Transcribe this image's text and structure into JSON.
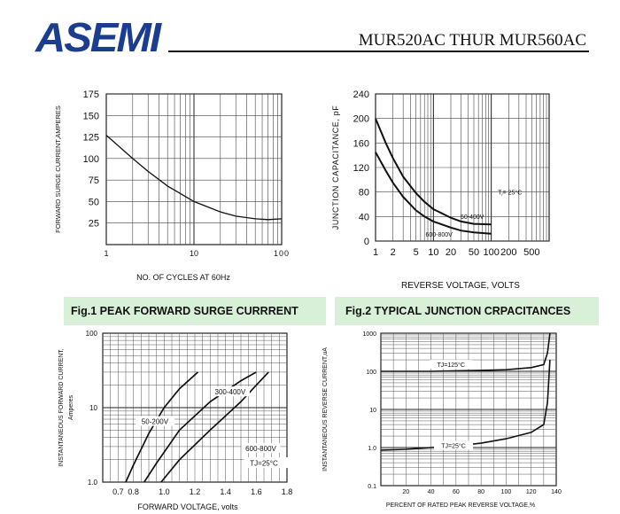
{
  "header": {
    "logo": "ASEMI",
    "part_range": "MUR520AC THUR MUR560AC",
    "brand_color": "#1b3d8f"
  },
  "captions": {
    "fig1": "Fig.1 PEAK FORWARD SURGE CURRRENT",
    "fig2": "Fig.2 TYPICAL JUNCTION CRPACITANCES",
    "band_color": "#d7f0d7"
  },
  "chart_data": [
    {
      "type": "line",
      "ylabel": "FORWARD SURGE CURRENT,AMPERES",
      "xlabel": "NO. OF CYCLES AT 60Hz",
      "x_scale": "log",
      "xlim": [
        1,
        100
      ],
      "ylim": [
        0,
        175
      ],
      "yticks": [
        25,
        50,
        75,
        100,
        125,
        150,
        175
      ],
      "xticks": [
        "1",
        "10",
        "100"
      ],
      "grid": true,
      "series": [
        {
          "x": [
            1,
            2,
            3,
            5,
            10,
            20,
            30,
            50,
            70,
            100
          ],
          "y": [
            127,
            100,
            85,
            68,
            50,
            38,
            33,
            30,
            29,
            30
          ]
        }
      ]
    },
    {
      "type": "line",
      "ylabel": "JUNCTION CAPACITANCE, pF",
      "xlabel": "REVERSE VOLTAGE, VOLTS",
      "x_scale": "log",
      "xlim": [
        1,
        1000
      ],
      "ylim": [
        0,
        240
      ],
      "yticks": [
        0,
        40,
        80,
        120,
        160,
        200,
        240
      ],
      "xticks": [
        "1",
        "2",
        "5",
        "10",
        "20",
        "50",
        "100",
        "200",
        "500"
      ],
      "grid": true,
      "annotation": "Tⱼ= 25°C",
      "series": [
        {
          "name": "50-400V",
          "x": [
            1,
            1.5,
            2,
            3,
            5,
            7,
            10,
            20,
            30,
            50,
            100
          ],
          "y": [
            200,
            160,
            135,
            105,
            78,
            64,
            52,
            38,
            32,
            28,
            27
          ]
        },
        {
          "name": "600-800V",
          "x": [
            1,
            1.5,
            2,
            3,
            5,
            7,
            10,
            20,
            30,
            50,
            100
          ],
          "y": [
            145,
            115,
            95,
            72,
            50,
            40,
            32,
            22,
            17,
            14,
            12
          ]
        }
      ]
    },
    {
      "type": "line",
      "ylabel": "INSTANTANEOUS FORWARD CURRENT,",
      "ylabel2": "Amperes",
      "xlabel": "FORWARD VOLTAGE, volts",
      "y_scale": "log",
      "xlim": [
        0.6,
        1.8
      ],
      "ylim": [
        1,
        100
      ],
      "yticks": [
        "1.0",
        "10",
        "100"
      ],
      "xticks": [
        "0.7",
        "0.8",
        "1.0",
        "1.2",
        "1.4",
        "1.6",
        "1.8"
      ],
      "grid": true,
      "annotation": "TJ=25°C",
      "series": [
        {
          "name": "50-200V",
          "x": [
            0.75,
            0.8,
            0.9,
            1.0,
            1.1,
            1.22
          ],
          "y": [
            1.0,
            1.7,
            4.5,
            10,
            18,
            30
          ]
        },
        {
          "name": "300-400V",
          "x": [
            0.87,
            0.95,
            1.1,
            1.3,
            1.5,
            1.6
          ],
          "y": [
            1.0,
            1.8,
            5,
            12,
            23,
            30
          ]
        },
        {
          "name": "600-800V",
          "x": [
            0.98,
            1.1,
            1.3,
            1.5,
            1.6,
            1.68
          ],
          "y": [
            1.0,
            2,
            5,
            12,
            20,
            30
          ]
        }
      ]
    },
    {
      "type": "line",
      "ylabel": "INSTANTANEOUS REVERSE CURRENT,uA",
      "xlabel": "PERCENT OF RATED PEAK REVERSE VOLTAGE,%",
      "y_scale": "log",
      "xlim": [
        0,
        140
      ],
      "ylim": [
        0.1,
        1000
      ],
      "yticks": [
        "0.1",
        "1.0",
        "10",
        "100",
        "1000"
      ],
      "xticks": [
        "20",
        "40",
        "60",
        "80",
        "100",
        "120",
        "140"
      ],
      "grid": true,
      "series": [
        {
          "name": "TJ=125°C",
          "x": [
            0,
            20,
            40,
            60,
            80,
            100,
            120,
            130,
            133,
            135
          ],
          "y": [
            100,
            100,
            100,
            103,
            106,
            110,
            125,
            150,
            300,
            1000
          ]
        },
        {
          "name": "TJ=25°C",
          "x": [
            0,
            20,
            40,
            60,
            80,
            100,
            120,
            130,
            133,
            135
          ],
          "y": [
            0.85,
            0.9,
            1.0,
            1.1,
            1.3,
            1.7,
            2.5,
            4,
            15,
            200
          ]
        }
      ]
    }
  ]
}
